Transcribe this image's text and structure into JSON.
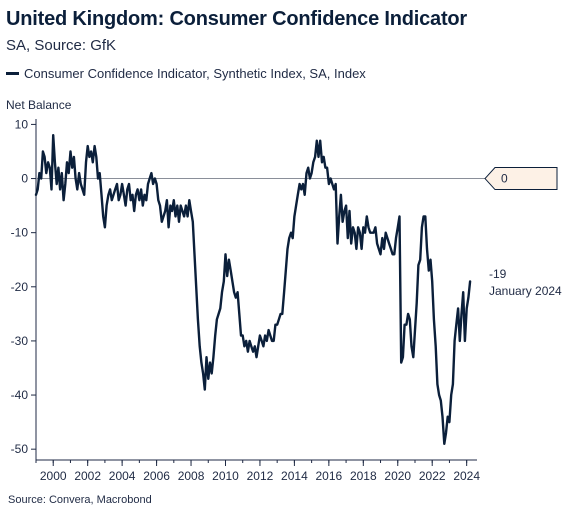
{
  "header": {
    "title": "United Kingdom: Consumer Confidence Indicator",
    "subtitle": "SA, Source: GfK"
  },
  "legend": {
    "label": "Consumer Confidence Indicator, Synthetic Index, SA, Index"
  },
  "footer": {
    "source": "Source: Convera, Macrobond"
  },
  "colors": {
    "line": "#0b1f3a",
    "zero_line": "#8a8f99",
    "callout_fill": "#fdf1e6",
    "callout_border": "#0b1f3a"
  },
  "chart_data": {
    "type": "line",
    "title": "United Kingdom: Consumer Confidence Indicator",
    "subtitle": "SA, Source: GfK",
    "ylabel": "Net Balance",
    "xlabel": "",
    "xlim": [
      1999.0,
      2024.6
    ],
    "ylim": [
      -52,
      11
    ],
    "x_ticks": [
      2000,
      2002,
      2004,
      2006,
      2008,
      2010,
      2012,
      2014,
      2016,
      2018,
      2020,
      2022,
      2024
    ],
    "y_ticks": [
      10,
      0,
      -10,
      -20,
      -30,
      -40,
      -50
    ],
    "grid": false,
    "legend_position": "top-left",
    "reference_line": {
      "value": 0,
      "label": "0"
    },
    "last_value_annotation": {
      "value": "-19",
      "date": "January 2024"
    },
    "series": [
      {
        "name": "Consumer Confidence Indicator, Synthetic Index, SA, Index",
        "points": [
          [
            1999.0,
            -3
          ],
          [
            1999.1,
            -2
          ],
          [
            1999.2,
            1
          ],
          [
            1999.3,
            0
          ],
          [
            1999.4,
            5
          ],
          [
            1999.5,
            4
          ],
          [
            1999.6,
            1
          ],
          [
            1999.7,
            3
          ],
          [
            1999.8,
            2
          ],
          [
            1999.9,
            -2
          ],
          [
            2000.0,
            8
          ],
          [
            2000.1,
            3
          ],
          [
            2000.2,
            -1
          ],
          [
            2000.3,
            2
          ],
          [
            2000.4,
            -2
          ],
          [
            2000.5,
            1
          ],
          [
            2000.6,
            -4
          ],
          [
            2000.7,
            -1
          ],
          [
            2000.8,
            3
          ],
          [
            2000.9,
            1
          ],
          [
            2001.0,
            5
          ],
          [
            2001.1,
            2
          ],
          [
            2001.2,
            4
          ],
          [
            2001.3,
            0
          ],
          [
            2001.4,
            -2
          ],
          [
            2001.5,
            1
          ],
          [
            2001.6,
            -1
          ],
          [
            2001.7,
            -2
          ],
          [
            2001.8,
            -3
          ],
          [
            2001.9,
            3
          ],
          [
            2002.0,
            6
          ],
          [
            2002.1,
            4
          ],
          [
            2002.2,
            5
          ],
          [
            2002.3,
            3
          ],
          [
            2002.4,
            6
          ],
          [
            2002.5,
            4
          ],
          [
            2002.6,
            0
          ],
          [
            2002.7,
            1
          ],
          [
            2002.8,
            -3
          ],
          [
            2002.9,
            -7
          ],
          [
            2003.0,
            -9
          ],
          [
            2003.1,
            -5
          ],
          [
            2003.2,
            -3
          ],
          [
            2003.3,
            -2
          ],
          [
            2003.4,
            -4
          ],
          [
            2003.5,
            -3
          ],
          [
            2003.6,
            -2
          ],
          [
            2003.7,
            -1
          ],
          [
            2003.8,
            -4
          ],
          [
            2003.9,
            -3
          ],
          [
            2004.0,
            -1
          ],
          [
            2004.1,
            -3
          ],
          [
            2004.2,
            -5
          ],
          [
            2004.3,
            -2
          ],
          [
            2004.4,
            -1
          ],
          [
            2004.5,
            -4
          ],
          [
            2004.6,
            -3
          ],
          [
            2004.7,
            -6
          ],
          [
            2004.8,
            -3
          ],
          [
            2004.9,
            -2
          ],
          [
            2005.0,
            -4
          ],
          [
            2005.1,
            -2
          ],
          [
            2005.2,
            -5
          ],
          [
            2005.3,
            -3
          ],
          [
            2005.4,
            -4
          ],
          [
            2005.5,
            -1
          ],
          [
            2005.6,
            0
          ],
          [
            2005.7,
            1
          ],
          [
            2005.8,
            -1
          ],
          [
            2005.9,
            0
          ],
          [
            2006.0,
            -1
          ],
          [
            2006.1,
            -4
          ],
          [
            2006.2,
            -5
          ],
          [
            2006.3,
            -8
          ],
          [
            2006.4,
            -7
          ],
          [
            2006.5,
            -6
          ],
          [
            2006.6,
            -4
          ],
          [
            2006.7,
            -9
          ],
          [
            2006.8,
            -5
          ],
          [
            2006.9,
            -6
          ],
          [
            2007.0,
            -4
          ],
          [
            2007.1,
            -7
          ],
          [
            2007.2,
            -5
          ],
          [
            2007.3,
            -8
          ],
          [
            2007.4,
            -5
          ],
          [
            2007.5,
            -6
          ],
          [
            2007.6,
            -7
          ],
          [
            2007.7,
            -5
          ],
          [
            2007.8,
            -7
          ],
          [
            2007.9,
            -4
          ],
          [
            2008.0,
            -6
          ],
          [
            2008.1,
            -8
          ],
          [
            2008.2,
            -14
          ],
          [
            2008.3,
            -20
          ],
          [
            2008.4,
            -26
          ],
          [
            2008.5,
            -31
          ],
          [
            2008.6,
            -34
          ],
          [
            2008.7,
            -36
          ],
          [
            2008.8,
            -39
          ],
          [
            2008.9,
            -33
          ],
          [
            2009.0,
            -37
          ],
          [
            2009.1,
            -34
          ],
          [
            2009.2,
            -36
          ],
          [
            2009.3,
            -33
          ],
          [
            2009.4,
            -29
          ],
          [
            2009.5,
            -26
          ],
          [
            2009.6,
            -25
          ],
          [
            2009.7,
            -24
          ],
          [
            2009.8,
            -21
          ],
          [
            2009.9,
            -19
          ],
          [
            2010.0,
            -14
          ],
          [
            2010.1,
            -18
          ],
          [
            2010.2,
            -15
          ],
          [
            2010.3,
            -17
          ],
          [
            2010.4,
            -19
          ],
          [
            2010.5,
            -21
          ],
          [
            2010.6,
            -22
          ],
          [
            2010.7,
            -21
          ],
          [
            2010.8,
            -25
          ],
          [
            2010.9,
            -29
          ],
          [
            2011.0,
            -29
          ],
          [
            2011.1,
            -31
          ],
          [
            2011.2,
            -30
          ],
          [
            2011.3,
            -32
          ],
          [
            2011.4,
            -30
          ],
          [
            2011.5,
            -31
          ],
          [
            2011.6,
            -32
          ],
          [
            2011.7,
            -31
          ],
          [
            2011.8,
            -33
          ],
          [
            2011.9,
            -31
          ],
          [
            2012.0,
            -29
          ],
          [
            2012.1,
            -30
          ],
          [
            2012.2,
            -31
          ],
          [
            2012.3,
            -29
          ],
          [
            2012.4,
            -30
          ],
          [
            2012.5,
            -28
          ],
          [
            2012.6,
            -29
          ],
          [
            2012.7,
            -30
          ],
          [
            2012.8,
            -30
          ],
          [
            2012.9,
            -27
          ],
          [
            2013.0,
            -27
          ],
          [
            2013.1,
            -26
          ],
          [
            2013.2,
            -25
          ],
          [
            2013.3,
            -25
          ],
          [
            2013.4,
            -21
          ],
          [
            2013.5,
            -17
          ],
          [
            2013.6,
            -13
          ],
          [
            2013.7,
            -11
          ],
          [
            2013.8,
            -10
          ],
          [
            2013.9,
            -11
          ],
          [
            2014.0,
            -7
          ],
          [
            2014.1,
            -5
          ],
          [
            2014.2,
            -3
          ],
          [
            2014.3,
            -1
          ],
          [
            2014.4,
            -2
          ],
          [
            2014.5,
            -1
          ],
          [
            2014.6,
            -3
          ],
          [
            2014.7,
            1
          ],
          [
            2014.8,
            2
          ],
          [
            2014.9,
            0
          ],
          [
            2015.0,
            1
          ],
          [
            2015.1,
            3
          ],
          [
            2015.2,
            4
          ],
          [
            2015.3,
            7
          ],
          [
            2015.4,
            4
          ],
          [
            2015.5,
            7
          ],
          [
            2015.6,
            3
          ],
          [
            2015.7,
            4
          ],
          [
            2015.8,
            2
          ],
          [
            2015.9,
            2
          ],
          [
            2016.0,
            -1
          ],
          [
            2016.1,
            0
          ],
          [
            2016.2,
            -1
          ],
          [
            2016.3,
            -2
          ],
          [
            2016.4,
            -1
          ],
          [
            2016.5,
            -12
          ],
          [
            2016.6,
            -7
          ],
          [
            2016.7,
            -3
          ],
          [
            2016.8,
            -8
          ],
          [
            2016.9,
            -6
          ],
          [
            2017.0,
            -5
          ],
          [
            2017.1,
            -11
          ],
          [
            2017.2,
            -6
          ],
          [
            2017.3,
            -12
          ],
          [
            2017.4,
            -9
          ],
          [
            2017.5,
            -10
          ],
          [
            2017.6,
            -13
          ],
          [
            2017.7,
            -9
          ],
          [
            2017.8,
            -10
          ],
          [
            2017.9,
            -13
          ],
          [
            2018.0,
            -9
          ],
          [
            2018.1,
            -10
          ],
          [
            2018.2,
            -7
          ],
          [
            2018.3,
            -9
          ],
          [
            2018.4,
            -10
          ],
          [
            2018.5,
            -10
          ],
          [
            2018.6,
            -10
          ],
          [
            2018.7,
            -9
          ],
          [
            2018.8,
            -12
          ],
          [
            2018.9,
            -13
          ],
          [
            2019.0,
            -14
          ],
          [
            2019.1,
            -11
          ],
          [
            2019.2,
            -13
          ],
          [
            2019.3,
            -10
          ],
          [
            2019.4,
            -11
          ],
          [
            2019.5,
            -12
          ],
          [
            2019.6,
            -13
          ],
          [
            2019.7,
            -14
          ],
          [
            2019.8,
            -14
          ],
          [
            2019.9,
            -11
          ],
          [
            2020.0,
            -9
          ],
          [
            2020.1,
            -7
          ],
          [
            2020.2,
            -34
          ],
          [
            2020.3,
            -33
          ],
          [
            2020.4,
            -27
          ],
          [
            2020.5,
            -27
          ],
          [
            2020.6,
            -25
          ],
          [
            2020.7,
            -26
          ],
          [
            2020.8,
            -31
          ],
          [
            2020.9,
            -33
          ],
          [
            2021.0,
            -28
          ],
          [
            2021.1,
            -23
          ],
          [
            2021.2,
            -16
          ],
          [
            2021.3,
            -15
          ],
          [
            2021.4,
            -9
          ],
          [
            2021.5,
            -7
          ],
          [
            2021.6,
            -7
          ],
          [
            2021.7,
            -13
          ],
          [
            2021.8,
            -17
          ],
          [
            2021.9,
            -15
          ],
          [
            2022.0,
            -19
          ],
          [
            2022.1,
            -26
          ],
          [
            2022.2,
            -31
          ],
          [
            2022.3,
            -38
          ],
          [
            2022.4,
            -40
          ],
          [
            2022.5,
            -41
          ],
          [
            2022.6,
            -44
          ],
          [
            2022.7,
            -49
          ],
          [
            2022.8,
            -47
          ],
          [
            2022.9,
            -44
          ],
          [
            2023.0,
            -45
          ],
          [
            2023.1,
            -40
          ],
          [
            2023.2,
            -38
          ],
          [
            2023.3,
            -30
          ],
          [
            2023.4,
            -27
          ],
          [
            2023.5,
            -24
          ],
          [
            2023.6,
            -30
          ],
          [
            2023.7,
            -25
          ],
          [
            2023.8,
            -21
          ],
          [
            2023.9,
            -30
          ],
          [
            2024.0,
            -24
          ],
          [
            2024.1,
            -22
          ],
          [
            2024.2,
            -19
          ]
        ]
      }
    ]
  }
}
